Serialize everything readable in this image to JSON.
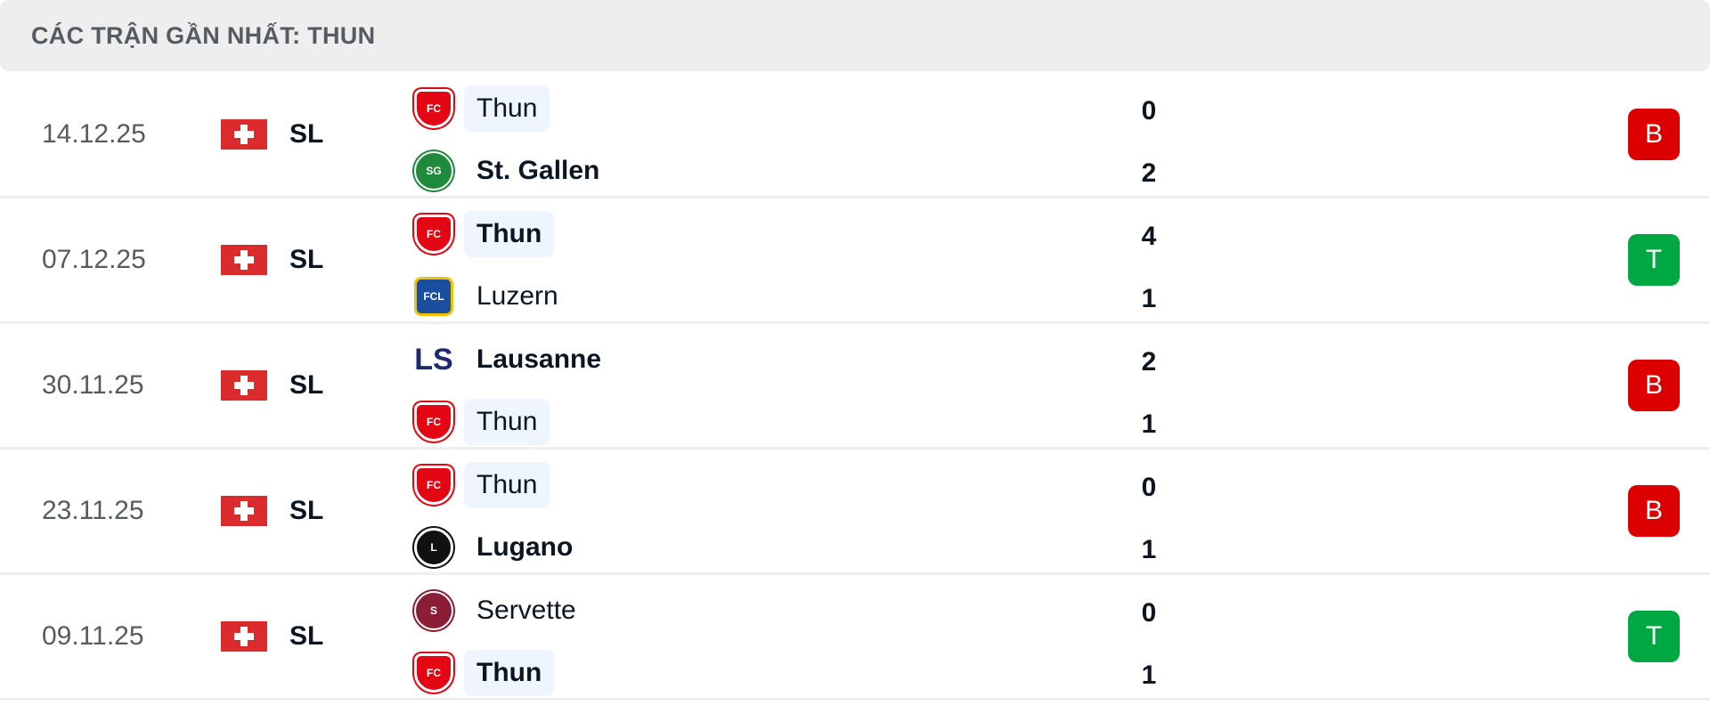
{
  "header": {
    "title": "CÁC TRẬN GẦN NHẤT: THUN"
  },
  "colors": {
    "loss": "#dd0000",
    "win": "#00a841",
    "highlight": "#eef5ff"
  },
  "matches": [
    {
      "date": "14.12.25",
      "flag": "switzerland-flag",
      "league": "SL",
      "home": {
        "name": "Thun",
        "logo": "fc-thun-logo",
        "score": "0",
        "bold": false,
        "highlight": true
      },
      "away": {
        "name": "St. Gallen",
        "logo": "fc-st-gallen-logo",
        "score": "2",
        "bold": true,
        "highlight": false
      },
      "result": "B",
      "result_type": "loss"
    },
    {
      "date": "07.12.25",
      "flag": "switzerland-flag",
      "league": "SL",
      "home": {
        "name": "Thun",
        "logo": "fc-thun-logo",
        "score": "4",
        "bold": true,
        "highlight": true
      },
      "away": {
        "name": "Luzern",
        "logo": "fc-luzern-logo",
        "score": "1",
        "bold": false,
        "highlight": false
      },
      "result": "T",
      "result_type": "win"
    },
    {
      "date": "30.11.25",
      "flag": "switzerland-flag",
      "league": "SL",
      "home": {
        "name": "Lausanne",
        "logo": "lausanne-sport-logo",
        "score": "2",
        "bold": true,
        "highlight": false
      },
      "away": {
        "name": "Thun",
        "logo": "fc-thun-logo",
        "score": "1",
        "bold": false,
        "highlight": true
      },
      "result": "B",
      "result_type": "loss"
    },
    {
      "date": "23.11.25",
      "flag": "switzerland-flag",
      "league": "SL",
      "home": {
        "name": "Thun",
        "logo": "fc-thun-logo",
        "score": "0",
        "bold": false,
        "highlight": true
      },
      "away": {
        "name": "Lugano",
        "logo": "fc-lugano-logo",
        "score": "1",
        "bold": true,
        "highlight": false
      },
      "result": "B",
      "result_type": "loss"
    },
    {
      "date": "09.11.25",
      "flag": "switzerland-flag",
      "league": "SL",
      "home": {
        "name": "Servette",
        "logo": "servette-fc-logo",
        "score": "0",
        "bold": false,
        "highlight": false
      },
      "away": {
        "name": "Thun",
        "logo": "fc-thun-logo",
        "score": "1",
        "bold": true,
        "highlight": true
      },
      "result": "T",
      "result_type": "win"
    }
  ]
}
